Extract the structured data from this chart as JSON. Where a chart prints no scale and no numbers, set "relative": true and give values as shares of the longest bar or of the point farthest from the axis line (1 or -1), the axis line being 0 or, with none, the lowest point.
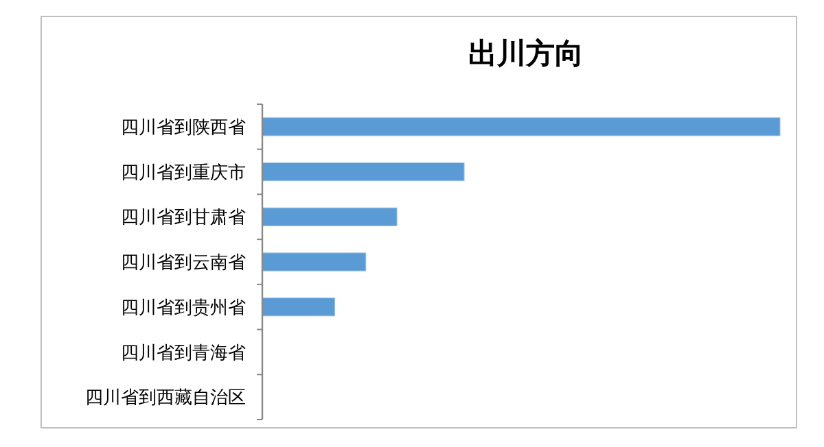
{
  "chart_data": {
    "type": "bar",
    "title": "出川方向",
    "orientation": "horizontal",
    "relative": true,
    "categories": [
      "四川省到陕西省",
      "四川省到重庆市",
      "四川省到甘肃省",
      "四川省到云南省",
      "四川省到贵州省",
      "四川省到青海省",
      "四川省到西藏自治区"
    ],
    "values": [
      1,
      0.39,
      0.26,
      0.2,
      0.14,
      0,
      0
    ],
    "color": "#5b9bd5"
  }
}
